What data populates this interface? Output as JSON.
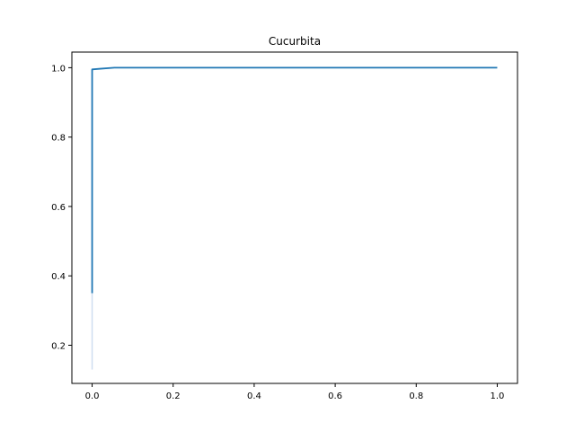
{
  "chart_data": {
    "type": "line",
    "title": "Cucurbita",
    "xlabel": "",
    "ylabel": "",
    "xlim": [
      -0.05,
      1.05
    ],
    "ylim": [
      0.09,
      1.045
    ],
    "grid": false,
    "x_ticks": [
      0.0,
      0.2,
      0.4,
      0.6,
      0.8,
      1.0
    ],
    "x_tick_labels": [
      "0.0",
      "0.2",
      "0.4",
      "0.6",
      "0.8",
      "1.0"
    ],
    "y_ticks": [
      0.2,
      0.4,
      0.6,
      0.8,
      1.0
    ],
    "y_tick_labels": [
      "0.2",
      "0.4",
      "0.6",
      "0.8",
      "1.0"
    ],
    "series": [
      {
        "color": "#1f77b4",
        "x": [
          0.0,
          0.0,
          0.0,
          0.02,
          0.055,
          1.0
        ],
        "y": [
          0.35,
          0.8,
          0.995,
          0.997,
          1.0,
          1.0
        ]
      }
    ],
    "band": {
      "color": "#aec7e8",
      "x": [
        0.0,
        0.0
      ],
      "y": [
        0.13,
        0.35
      ]
    }
  }
}
